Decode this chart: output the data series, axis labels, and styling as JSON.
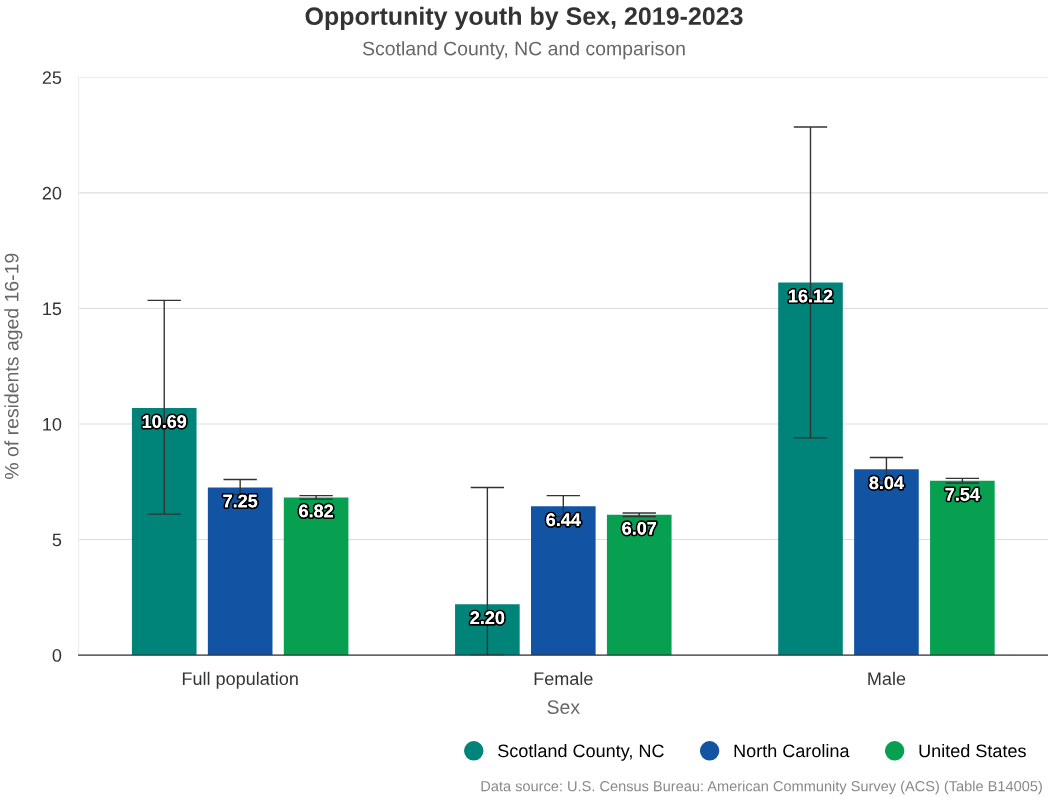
{
  "chart_data": {
    "type": "bar",
    "title": "Opportunity youth by Sex, 2019-2023",
    "subtitle": "Scotland County, NC and comparison",
    "xlabel": "Sex",
    "ylabel": "% of residents aged 16-19",
    "categories": [
      "Full population",
      "Female",
      "Male"
    ],
    "series": [
      {
        "name": "Scotland County, NC",
        "color": "#00847a",
        "values": [
          10.69,
          2.2,
          16.12
        ],
        "value_labels": [
          "10.69",
          "2.20",
          "16.12"
        ],
        "errors": [
          [
            6.1,
            15.35
          ],
          [
            0,
            7.25
          ],
          [
            9.4,
            22.85
          ]
        ]
      },
      {
        "name": "North Carolina",
        "color": "#1254a3",
        "values": [
          7.25,
          6.44,
          8.04
        ],
        "value_labels": [
          "7.25",
          "6.44",
          "8.04"
        ],
        "errors": [
          [
            6.95,
            7.6
          ],
          [
            6.0,
            6.9
          ],
          [
            7.55,
            8.55
          ]
        ]
      },
      {
        "name": "United States",
        "color": "#06a050",
        "values": [
          6.82,
          6.07,
          7.54
        ],
        "value_labels": [
          "6.82",
          "6.07",
          "7.54"
        ],
        "errors": [
          [
            6.75,
            6.9
          ],
          [
            6.0,
            6.15
          ],
          [
            7.45,
            7.65
          ]
        ]
      }
    ],
    "ylim": [
      0,
      25
    ],
    "yticks": [
      0,
      5,
      10,
      15,
      20,
      25
    ],
    "grid": "y",
    "legend": "bottom right",
    "annotations": [
      "Data source: U.S. Census Bureau: American Community Survey (ACS) (Table B14005)"
    ]
  }
}
